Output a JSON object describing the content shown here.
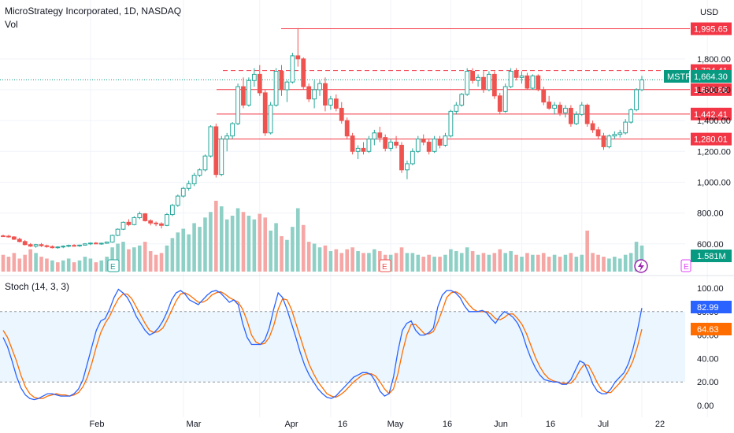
{
  "header": {
    "title": "MicroStrategy Incorporated, 1D, NASDAQ",
    "vol_label": "Vol",
    "currency": "USD"
  },
  "stoch": {
    "label": "Stoch (14, 3, 3)",
    "k_value": "82.99",
    "d_value": "64.63",
    "upper_band": 80,
    "lower_band": 20,
    "ticks": [
      "100.00",
      "80.00",
      "60.00",
      "40.00",
      "20.00",
      "0.00"
    ],
    "k_color": "#2962ff",
    "d_color": "#ff6d00"
  },
  "price_axis": {
    "ticks": [
      "1,800.00",
      "1,600.00",
      "1,400.00",
      "1,200.00",
      "1,000.00",
      "800.00",
      "600.00"
    ]
  },
  "levels": [
    {
      "label": "1,995.65",
      "value": 1995.65,
      "style": "solid",
      "color": "#f23645"
    },
    {
      "label": "1,724.41",
      "value": 1724.41,
      "style": "dashed",
      "color": "#f23645"
    },
    {
      "label": "1,600.86",
      "value": 1600.86,
      "style": "solid",
      "color": "#f23645"
    },
    {
      "label": "1,442.41",
      "value": 1442.41,
      "style": "solid",
      "color": "#f23645"
    },
    {
      "label": "1,280.01",
      "value": 1280.01,
      "style": "solid",
      "color": "#f23645"
    }
  ],
  "ticker": {
    "symbol": "MSTR",
    "price": "1,664.30",
    "value": 1664.3,
    "color": "#089981"
  },
  "volume_tag": "1.581M",
  "x_axis": [
    "Feb",
    "Mar",
    "Apr",
    "16",
    "May",
    "16",
    "Jun",
    "16",
    "Jul",
    "22"
  ],
  "event_markers": [
    "E",
    "E"
  ],
  "colors": {
    "up": "#26a69a",
    "down": "#ef5350",
    "grid": "#f0f3fa"
  },
  "chart_data": {
    "type": "candlestick",
    "title": "MicroStrategy Incorporated, 1D, NASDAQ",
    "price_range": [
      420,
      2080
    ],
    "candles": [
      [
        652,
        660,
        645,
        650
      ],
      [
        650,
        658,
        640,
        645
      ],
      [
        645,
        650,
        625,
        630
      ],
      [
        630,
        640,
        610,
        615
      ],
      [
        615,
        625,
        590,
        595
      ],
      [
        595,
        605,
        580,
        585
      ],
      [
        585,
        600,
        575,
        595
      ],
      [
        595,
        605,
        580,
        588
      ],
      [
        588,
        595,
        575,
        582
      ],
      [
        582,
        590,
        570,
        575
      ],
      [
        575,
        585,
        568,
        580
      ],
      [
        580,
        590,
        572,
        585
      ],
      [
        585,
        595,
        578,
        590
      ],
      [
        590,
        598,
        582,
        588
      ],
      [
        588,
        595,
        580,
        592
      ],
      [
        592,
        605,
        588,
        600
      ],
      [
        600,
        610,
        592,
        605
      ],
      [
        605,
        612,
        598,
        600
      ],
      [
        600,
        608,
        594,
        604
      ],
      [
        604,
        615,
        600,
        612
      ],
      [
        612,
        660,
        608,
        655
      ],
      [
        655,
        700,
        650,
        695
      ],
      [
        695,
        745,
        690,
        740
      ],
      [
        740,
        760,
        715,
        725
      ],
      [
        725,
        780,
        720,
        770
      ],
      [
        770,
        810,
        760,
        795
      ],
      [
        795,
        800,
        745,
        750
      ],
      [
        750,
        760,
        720,
        735
      ],
      [
        735,
        745,
        715,
        730
      ],
      [
        730,
        740,
        700,
        720
      ],
      [
        720,
        800,
        715,
        790
      ],
      [
        790,
        860,
        780,
        850
      ],
      [
        850,
        920,
        840,
        910
      ],
      [
        910,
        970,
        900,
        960
      ],
      [
        960,
        1010,
        945,
        990
      ],
      [
        990,
        1060,
        975,
        1045
      ],
      [
        1045,
        1090,
        1035,
        1080
      ],
      [
        1080,
        1180,
        1070,
        1170
      ],
      [
        1170,
        1370,
        1160,
        1360
      ],
      [
        1360,
        1380,
        1030,
        1050
      ],
      [
        1050,
        1300,
        1040,
        1280
      ],
      [
        1280,
        1320,
        1200,
        1300
      ],
      [
        1300,
        1390,
        1280,
        1380
      ],
      [
        1380,
        1640,
        1370,
        1620
      ],
      [
        1620,
        1680,
        1480,
        1500
      ],
      [
        1500,
        1680,
        1490,
        1660
      ],
      [
        1660,
        1740,
        1620,
        1700
      ],
      [
        1700,
        1760,
        1560,
        1580
      ],
      [
        1580,
        1600,
        1300,
        1320
      ],
      [
        1320,
        1520,
        1310,
        1500
      ],
      [
        1500,
        1740,
        1490,
        1720
      ],
      [
        1720,
        1760,
        1560,
        1600
      ],
      [
        1600,
        1660,
        1520,
        1650
      ],
      [
        1650,
        1840,
        1640,
        1820
      ],
      [
        1820,
        2000,
        1750,
        1800
      ],
      [
        1800,
        1810,
        1600,
        1620
      ],
      [
        1620,
        1640,
        1520,
        1540
      ],
      [
        1540,
        1660,
        1480,
        1600
      ],
      [
        1600,
        1660,
        1560,
        1640
      ],
      [
        1640,
        1680,
        1460,
        1500
      ],
      [
        1500,
        1560,
        1470,
        1540
      ],
      [
        1540,
        1570,
        1460,
        1480
      ],
      [
        1480,
        1520,
        1380,
        1400
      ],
      [
        1400,
        1420,
        1280,
        1300
      ],
      [
        1300,
        1320,
        1180,
        1200
      ],
      [
        1200,
        1240,
        1150,
        1220
      ],
      [
        1220,
        1260,
        1180,
        1200
      ],
      [
        1200,
        1300,
        1190,
        1280
      ],
      [
        1280,
        1340,
        1240,
        1320
      ],
      [
        1320,
        1360,
        1260,
        1290
      ],
      [
        1290,
        1310,
        1200,
        1220
      ],
      [
        1220,
        1280,
        1200,
        1260
      ],
      [
        1260,
        1300,
        1220,
        1240
      ],
      [
        1240,
        1260,
        1060,
        1080
      ],
      [
        1080,
        1140,
        1020,
        1120
      ],
      [
        1120,
        1220,
        1110,
        1200
      ],
      [
        1200,
        1300,
        1190,
        1280
      ],
      [
        1280,
        1310,
        1240,
        1260
      ],
      [
        1260,
        1280,
        1180,
        1200
      ],
      [
        1200,
        1300,
        1190,
        1280
      ],
      [
        1280,
        1300,
        1220,
        1240
      ],
      [
        1240,
        1320,
        1230,
        1300
      ],
      [
        1300,
        1470,
        1290,
        1460
      ],
      [
        1460,
        1520,
        1440,
        1500
      ],
      [
        1500,
        1580,
        1490,
        1570
      ],
      [
        1570,
        1740,
        1560,
        1720
      ],
      [
        1720,
        1740,
        1640,
        1660
      ],
      [
        1660,
        1700,
        1620,
        1680
      ],
      [
        1680,
        1720,
        1580,
        1600
      ],
      [
        1600,
        1720,
        1590,
        1700
      ],
      [
        1700,
        1720,
        1540,
        1560
      ],
      [
        1560,
        1580,
        1440,
        1460
      ],
      [
        1460,
        1640,
        1450,
        1620
      ],
      [
        1620,
        1740,
        1610,
        1720
      ],
      [
        1720,
        1740,
        1660,
        1680
      ],
      [
        1680,
        1720,
        1640,
        1690
      ],
      [
        1690,
        1710,
        1600,
        1610
      ],
      [
        1610,
        1700,
        1600,
        1690
      ],
      [
        1690,
        1700,
        1590,
        1600
      ],
      [
        1600,
        1620,
        1500,
        1520
      ],
      [
        1520,
        1560,
        1470,
        1480
      ],
      [
        1480,
        1520,
        1440,
        1500
      ],
      [
        1500,
        1520,
        1430,
        1450
      ],
      [
        1450,
        1500,
        1420,
        1480
      ],
      [
        1480,
        1500,
        1360,
        1380
      ],
      [
        1380,
        1460,
        1370,
        1440
      ],
      [
        1440,
        1520,
        1430,
        1500
      ],
      [
        1500,
        1510,
        1360,
        1380
      ],
      [
        1380,
        1400,
        1320,
        1340
      ],
      [
        1340,
        1360,
        1280,
        1300
      ],
      [
        1300,
        1320,
        1210,
        1230
      ],
      [
        1230,
        1310,
        1220,
        1300
      ],
      [
        1300,
        1330,
        1280,
        1310
      ],
      [
        1310,
        1340,
        1290,
        1320
      ],
      [
        1320,
        1410,
        1310,
        1390
      ],
      [
        1390,
        1480,
        1380,
        1470
      ],
      [
        1470,
        1610,
        1460,
        1600
      ],
      [
        1600,
        1690,
        1590,
        1664
      ]
    ],
    "volume": [
      [
        0.9,
        0
      ],
      [
        0.8,
        0
      ],
      [
        1.0,
        0
      ],
      [
        0.7,
        0
      ],
      [
        0.9,
        0
      ],
      [
        1.2,
        0
      ],
      [
        1.0,
        1
      ],
      [
        0.8,
        0
      ],
      [
        0.7,
        0
      ],
      [
        0.6,
        1
      ],
      [
        0.5,
        0
      ],
      [
        0.6,
        1
      ],
      [
        0.7,
        1
      ],
      [
        0.5,
        0
      ],
      [
        0.6,
        1
      ],
      [
        0.8,
        1
      ],
      [
        0.7,
        1
      ],
      [
        0.5,
        0
      ],
      [
        0.6,
        1
      ],
      [
        0.8,
        1
      ],
      [
        1.3,
        1
      ],
      [
        1.5,
        1
      ],
      [
        1.6,
        1
      ],
      [
        1.2,
        0
      ],
      [
        1.3,
        1
      ],
      [
        1.4,
        1
      ],
      [
        1.6,
        0
      ],
      [
        1.1,
        0
      ],
      [
        0.9,
        0
      ],
      [
        1.0,
        0
      ],
      [
        1.4,
        1
      ],
      [
        1.8,
        1
      ],
      [
        2.1,
        1
      ],
      [
        2.3,
        1
      ],
      [
        2.0,
        1
      ],
      [
        2.6,
        1
      ],
      [
        2.4,
        1
      ],
      [
        2.9,
        1
      ],
      [
        3.2,
        1
      ],
      [
        3.8,
        0
      ],
      [
        3.5,
        1
      ],
      [
        2.8,
        1
      ],
      [
        3.0,
        1
      ],
      [
        3.4,
        1
      ],
      [
        3.2,
        0
      ],
      [
        3.0,
        1
      ],
      [
        2.8,
        1
      ],
      [
        3.1,
        0
      ],
      [
        2.9,
        0
      ],
      [
        2.2,
        1
      ],
      [
        2.6,
        1
      ],
      [
        1.9,
        0
      ],
      [
        1.7,
        1
      ],
      [
        2.4,
        1
      ],
      [
        3.4,
        1
      ],
      [
        2.5,
        0
      ],
      [
        1.6,
        0
      ],
      [
        1.5,
        1
      ],
      [
        1.3,
        1
      ],
      [
        1.4,
        0
      ],
      [
        1.1,
        1
      ],
      [
        1.2,
        0
      ],
      [
        1.0,
        0
      ],
      [
        1.2,
        0
      ],
      [
        1.3,
        0
      ],
      [
        1.1,
        1
      ],
      [
        1.0,
        0
      ],
      [
        1.0,
        1
      ],
      [
        1.2,
        1
      ],
      [
        1.1,
        0
      ],
      [
        0.9,
        0
      ],
      [
        0.9,
        1
      ],
      [
        1.0,
        0
      ],
      [
        1.3,
        0
      ],
      [
        1.0,
        1
      ],
      [
        1.0,
        1
      ],
      [
        0.9,
        1
      ],
      [
        0.8,
        0
      ],
      [
        0.9,
        0
      ],
      [
        0.8,
        1
      ],
      [
        0.8,
        0
      ],
      [
        0.9,
        1
      ],
      [
        1.2,
        1
      ],
      [
        1.1,
        1
      ],
      [
        1.0,
        1
      ],
      [
        1.3,
        1
      ],
      [
        1.1,
        0
      ],
      [
        0.9,
        1
      ],
      [
        1.0,
        0
      ],
      [
        0.9,
        1
      ],
      [
        1.0,
        0
      ],
      [
        1.2,
        0
      ],
      [
        1.0,
        1
      ],
      [
        1.1,
        1
      ],
      [
        0.9,
        0
      ],
      [
        0.8,
        1
      ],
      [
        1.0,
        0
      ],
      [
        0.9,
        1
      ],
      [
        0.9,
        0
      ],
      [
        1.0,
        0
      ],
      [
        0.8,
        0
      ],
      [
        0.9,
        1
      ],
      [
        0.8,
        0
      ],
      [
        0.9,
        1
      ],
      [
        1.0,
        0
      ],
      [
        0.8,
        1
      ],
      [
        0.9,
        1
      ],
      [
        2.2,
        0
      ],
      [
        1.0,
        0
      ],
      [
        0.9,
        0
      ],
      [
        0.8,
        0
      ],
      [
        0.7,
        1
      ],
      [
        0.8,
        1
      ],
      [
        0.7,
        1
      ],
      [
        0.9,
        1
      ],
      [
        1.0,
        1
      ],
      [
        1.6,
        1
      ],
      [
        1.4,
        1
      ]
    ],
    "stoch_k": [
      58,
      50,
      38,
      25,
      15,
      9,
      6,
      5,
      6,
      8,
      10,
      10,
      9,
      8,
      8,
      8,
      10,
      14,
      22,
      36,
      50,
      64,
      72,
      74,
      82,
      92,
      99,
      96,
      92,
      85,
      76,
      70,
      64,
      60,
      62,
      66,
      72,
      80,
      90,
      96,
      98,
      95,
      90,
      88,
      86,
      90,
      94,
      97,
      98,
      96,
      92,
      88,
      90,
      86,
      70,
      58,
      52,
      52,
      52,
      56,
      66,
      82,
      96,
      92,
      82,
      70,
      58,
      45,
      34,
      26,
      20,
      14,
      10,
      7,
      6,
      8,
      12,
      16,
      20,
      24,
      26,
      28,
      28,
      26,
      20,
      12,
      8,
      10,
      24,
      46,
      64,
      70,
      72,
      64,
      60,
      60,
      62,
      66,
      84,
      94,
      98,
      98,
      96,
      92,
      85,
      80,
      80,
      80,
      81,
      79,
      74,
      70,
      76,
      80,
      78,
      75,
      70,
      62,
      50,
      40,
      32,
      26,
      22,
      21,
      20,
      20,
      18,
      18,
      22,
      30,
      38,
      36,
      28,
      18,
      12,
      10,
      10,
      14,
      20,
      24,
      28,
      36,
      48,
      64,
      83
    ],
    "stoch_d": [
      64,
      58,
      48,
      38,
      26,
      16,
      10,
      7,
      6,
      6,
      8,
      9,
      10,
      9,
      9,
      8,
      9,
      11,
      16,
      24,
      36,
      50,
      62,
      70,
      76,
      84,
      91,
      95,
      95,
      91,
      84,
      77,
      70,
      64,
      62,
      63,
      66,
      73,
      81,
      89,
      95,
      96,
      94,
      91,
      88,
      88,
      90,
      94,
      96,
      97,
      95,
      92,
      90,
      88,
      82,
      72,
      60,
      54,
      52,
      53,
      58,
      68,
      82,
      91,
      90,
      82,
      70,
      58,
      46,
      35,
      27,
      20,
      15,
      10,
      8,
      7,
      9,
      12,
      16,
      20,
      23,
      26,
      27,
      27,
      25,
      20,
      14,
      10,
      14,
      27,
      45,
      60,
      69,
      69,
      65,
      61,
      61,
      63,
      71,
      81,
      92,
      96,
      97,
      95,
      91,
      86,
      82,
      80,
      80,
      80,
      78,
      74,
      73,
      75,
      78,
      78,
      74,
      69,
      61,
      51,
      41,
      33,
      27,
      23,
      21,
      20,
      19,
      19,
      19,
      23,
      30,
      35,
      34,
      27,
      19,
      13,
      11,
      11,
      15,
      19,
      24,
      30,
      38,
      50,
      65
    ]
  }
}
